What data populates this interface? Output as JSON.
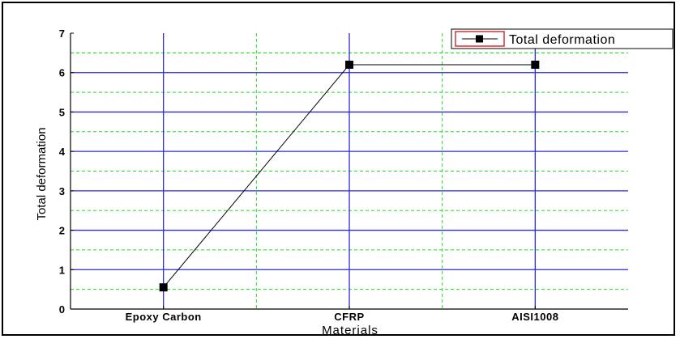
{
  "chart_data": {
    "type": "line",
    "categories": [
      "Epoxy Carbon",
      "CFRP",
      "AISI1008"
    ],
    "series": [
      {
        "name": "Total deformation",
        "values": [
          0.55,
          6.2,
          6.2
        ],
        "color": "#000000",
        "marker": "square"
      }
    ],
    "xlabel": "Materials",
    "ylabel": "Total deformation",
    "ylim": [
      0,
      7
    ],
    "yticks": [
      "0",
      "1",
      "2",
      "3",
      "4",
      "5",
      "6",
      "7"
    ],
    "grid": {
      "major_color": "#2a2ad8",
      "minor_color": "#22dd22",
      "minor_style": "dashed"
    },
    "legend_position": "top-right",
    "legend_border_color": "#cc0000"
  }
}
